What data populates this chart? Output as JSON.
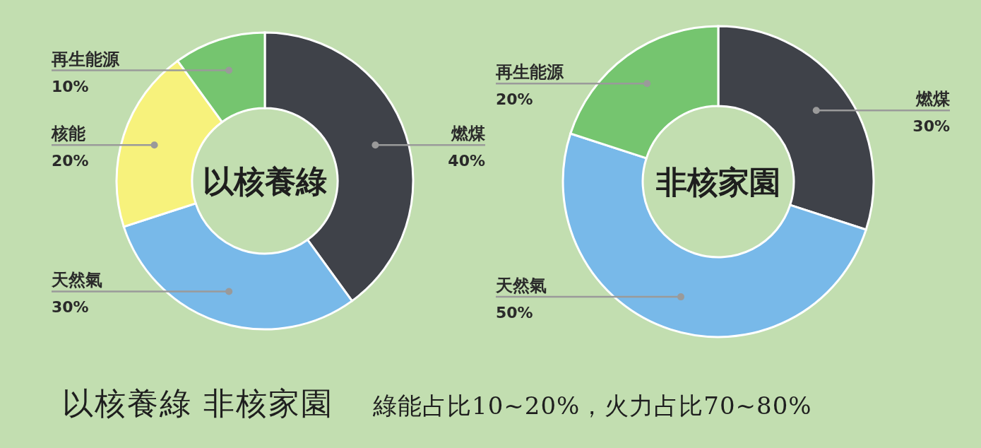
{
  "chart_data": [
    {
      "type": "donut",
      "title": "以核養綠",
      "categories": [
        "燃煤",
        "天然氣",
        "核能",
        "再生能源"
      ],
      "values": [
        40,
        30,
        20,
        10
      ],
      "colors": [
        "#3f4249",
        "#78b9e9",
        "#f7f27c",
        "#75c56f"
      ],
      "value_labels": [
        "40%",
        "30%",
        "20%",
        "10%"
      ],
      "annotations": [
        "以核養綠 非核家園",
        "綠能占比10~20%，火力占比70~80%"
      ]
    },
    {
      "type": "donut",
      "title": "非核家園",
      "categories": [
        "燃煤",
        "天然氣",
        "再生能源"
      ],
      "values": [
        30,
        50,
        20
      ],
      "colors": [
        "#3f4249",
        "#78b9e9",
        "#75c56f"
      ],
      "value_labels": [
        "30%",
        "50%",
        "20%"
      ]
    }
  ]
}
